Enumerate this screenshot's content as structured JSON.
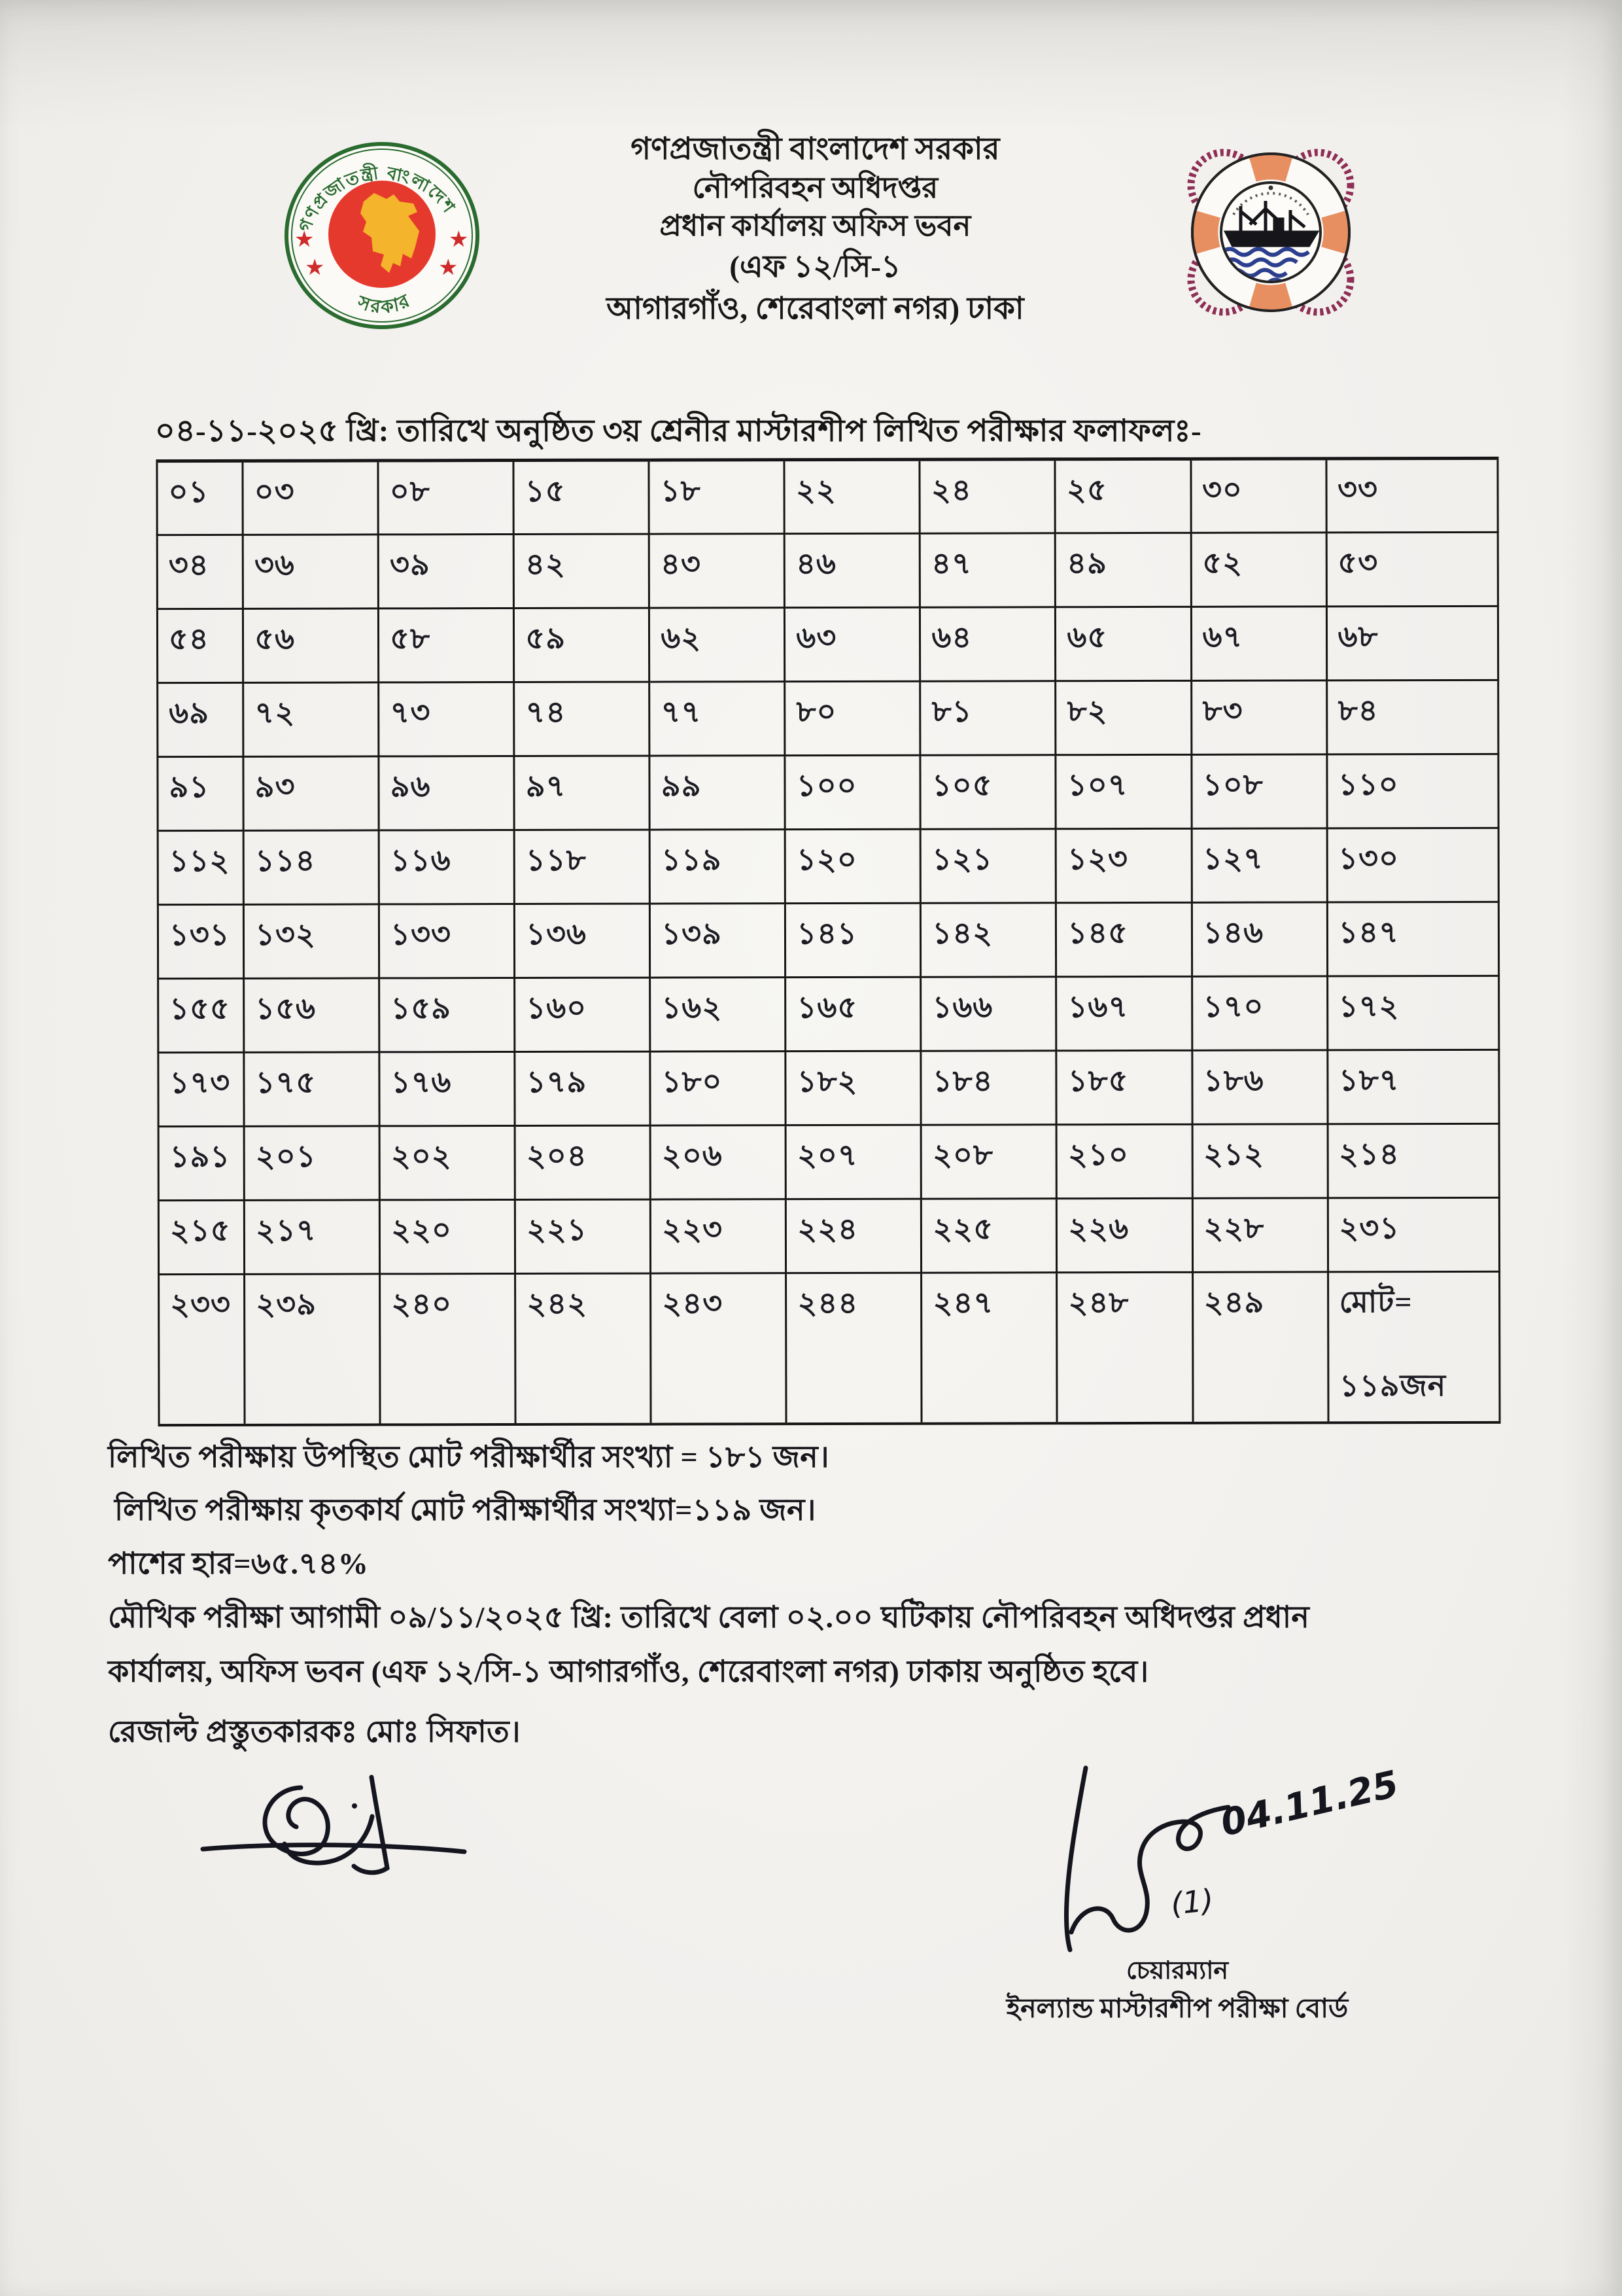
{
  "header": {
    "org_line1": "গণপ্রজাতন্ত্রী বাংলাদেশ সরকার",
    "org_line2": "নৌপরিবহন অধিদপ্তর",
    "org_line3": "প্রধান কার্যালয় অফিস ভবন",
    "org_line4": "(এফ ১২/সি-১",
    "org_line5": "আগারগাঁও, শেরেবাংলা   নগর) ঢাকা",
    "left_seal": {
      "text_top": "গণপ্রজাতন্ত্রী বাংলাদেশ",
      "text_bottom": "সরকার",
      "colors": {
        "ring": "#2a6b2f",
        "center": "#e6392d",
        "map": "#f4b42c",
        "star": "#cf2b2b"
      }
    },
    "right_seal": {
      "colors": {
        "rope": "#8e2f55",
        "segment": "#e88f62",
        "waves": "#2b3f8e",
        "ship": "#15151a"
      }
    }
  },
  "title": "০৪-১১-২০২৫ খ্রি: তারিখে অনুষ্ঠিত ৩য় শ্রেনীর মাস্টারশীপ লিখিত পরীক্ষার ফলাফলঃ-",
  "table": {
    "rows": [
      [
        "০১",
        "০৩",
        "০৮",
        "১৫",
        "১৮",
        "২২",
        "২৪",
        "২৫",
        "৩০",
        "৩৩"
      ],
      [
        "৩৪",
        "৩৬",
        "৩৯",
        "৪২",
        "৪৩",
        "৪৬",
        "৪৭",
        "৪৯",
        "৫২",
        "৫৩"
      ],
      [
        "৫৪",
        "৫৬",
        "৫৮",
        "৫৯",
        "৬২",
        "৬৩",
        "৬৪",
        "৬৫",
        "৬৭",
        "৬৮"
      ],
      [
        "৬৯",
        "৭২",
        "৭৩",
        "৭৪",
        "৭৭",
        "৮০",
        "৮১",
        "৮২",
        "৮৩",
        "৮৪"
      ],
      [
        "৯১",
        "৯৩",
        "৯৬",
        "৯৭",
        "৯৯",
        "১০০",
        "১০৫",
        "১০৭",
        "১০৮",
        "১১০"
      ],
      [
        "১১২",
        "১১৪",
        "১১৬",
        "১১৮",
        "১১৯",
        "১২০",
        "১২১",
        "১২৩",
        "১২৭",
        "১৩০"
      ],
      [
        "১৩১",
        "১৩২",
        "১৩৩",
        "১৩৬",
        "১৩৯",
        "১৪১",
        "১৪২",
        "১৪৫",
        "১৪৬",
        "১৪৭"
      ],
      [
        "১৫৫",
        "১৫৬",
        "১৫৯",
        "১৬০",
        "১৬২",
        "১৬৫",
        "১৬৬",
        "১৬৭",
        "১৭০",
        "১৭২"
      ],
      [
        "১৭৩",
        "১৭৫",
        "১৭৬",
        "১৭৯",
        "১৮০",
        "১৮২",
        "১৮৪",
        "১৮৫",
        "১৮৬",
        "১৮৭"
      ],
      [
        "১৯১",
        "২০১",
        "২০২",
        "২০৪",
        "২০৬",
        "২০৭",
        "২০৮",
        "২১০",
        "২১২",
        "২১৪"
      ],
      [
        "২১৫",
        "২১৭",
        "২২০",
        "২২১",
        "২২৩",
        "২২৪",
        "২২৫",
        "২২৬",
        "২২৮",
        "২৩১"
      ],
      [
        "২৩৩",
        "২৩৯",
        "২৪০",
        "২৪২",
        "২৪৩",
        "২৪৪",
        "২৪৭",
        "২৪৮",
        "২৪৯"
      ]
    ],
    "total_label": "মোট=",
    "total_value": "১১৯জন"
  },
  "summary": {
    "line1": "লিখিত পরীক্ষায় উপস্থিত মোট পরীক্ষার্থীর সংখ্যা = ১৮১ জন।",
    "line2": "লিখিত পরীক্ষায় কৃতকার্য মোট পরীক্ষার্থীর সংখ্যা=১১৯ জন।",
    "line3": "পাশের হার=৬৫.৭৪%",
    "line4": "মৌখিক পরীক্ষা আগামী ০৯/১১/২০২৫ খ্রি: তারিখে বেলা ০২.০০ ঘটিকায় নৌপরিবহন অধিদপ্তর প্রধান",
    "line5": "কার্যালয়, অফিস ভবন (এফ ১২/সি-১ আগারগাঁও, শেরেবাংলা নগর) ঢাকায় অনুষ্ঠিত হবে।",
    "line6": "রেজাল্ট প্রস্তুতকারকঃ মোঃ সিফাত।"
  },
  "signatures": {
    "right_date": "04.11.25",
    "right_note": "(1)",
    "right_title": "চেয়ারম্যান",
    "right_org": "ইনল্যান্ড মাস্টারশীপ পরীক্ষা বোর্ড"
  }
}
